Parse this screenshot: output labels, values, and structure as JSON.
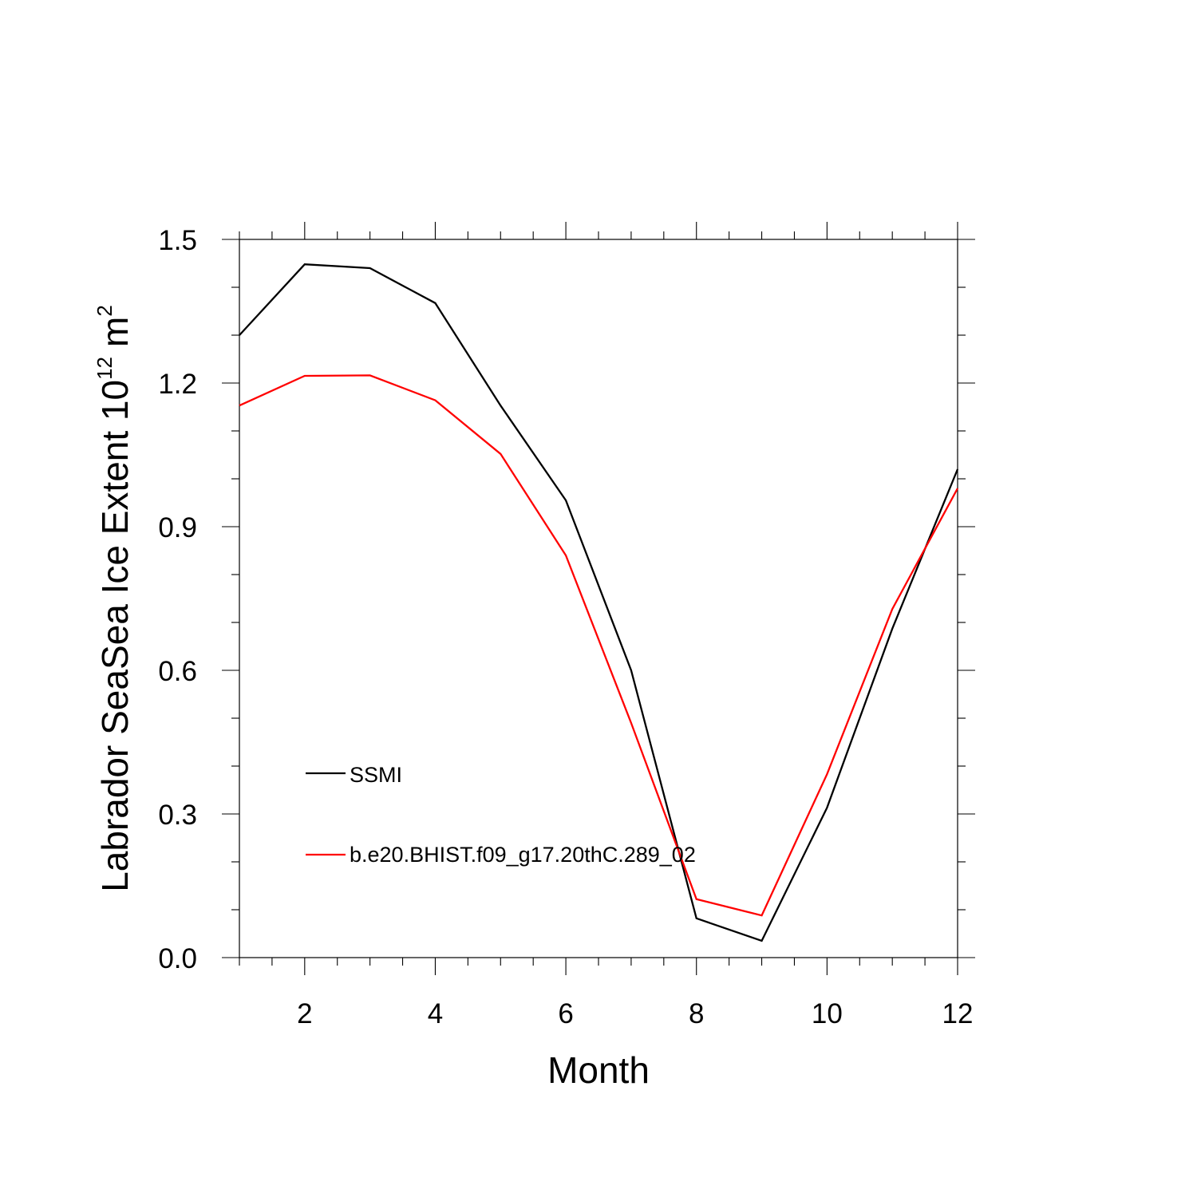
{
  "chart_data": {
    "type": "line",
    "xlabel": "Month",
    "ylabel": "Labrador SeaSea Ice Extent 10",
    "ylabel_sup": "12",
    "ylabel_unit": "m",
    "ylabel_unit_sup": "2",
    "xlim": [
      1,
      12
    ],
    "ylim": [
      0.0,
      1.5
    ],
    "x_ticks": [
      2,
      4,
      6,
      8,
      10,
      12
    ],
    "y_ticks": [
      "0.0",
      "0.3",
      "0.6",
      "0.9",
      "1.2",
      "1.5"
    ],
    "x": [
      1,
      2,
      3,
      4,
      5,
      6,
      7,
      8,
      9,
      10,
      11,
      12
    ],
    "series": [
      {
        "name": "SSMI",
        "color": "#000000",
        "values": [
          1.3,
          1.448,
          1.44,
          1.367,
          1.153,
          0.955,
          0.6,
          0.082,
          0.035,
          0.313,
          0.687,
          1.02
        ]
      },
      {
        "name": "b.e20.BHIST.f09_g17.20thC.289_02",
        "color": "#ff0000",
        "values": [
          1.153,
          1.215,
          1.216,
          1.164,
          1.052,
          0.84,
          0.49,
          0.122,
          0.088,
          0.383,
          0.728,
          0.98
        ]
      }
    ],
    "legend_position": "left-lower-middle",
    "grid": false
  }
}
